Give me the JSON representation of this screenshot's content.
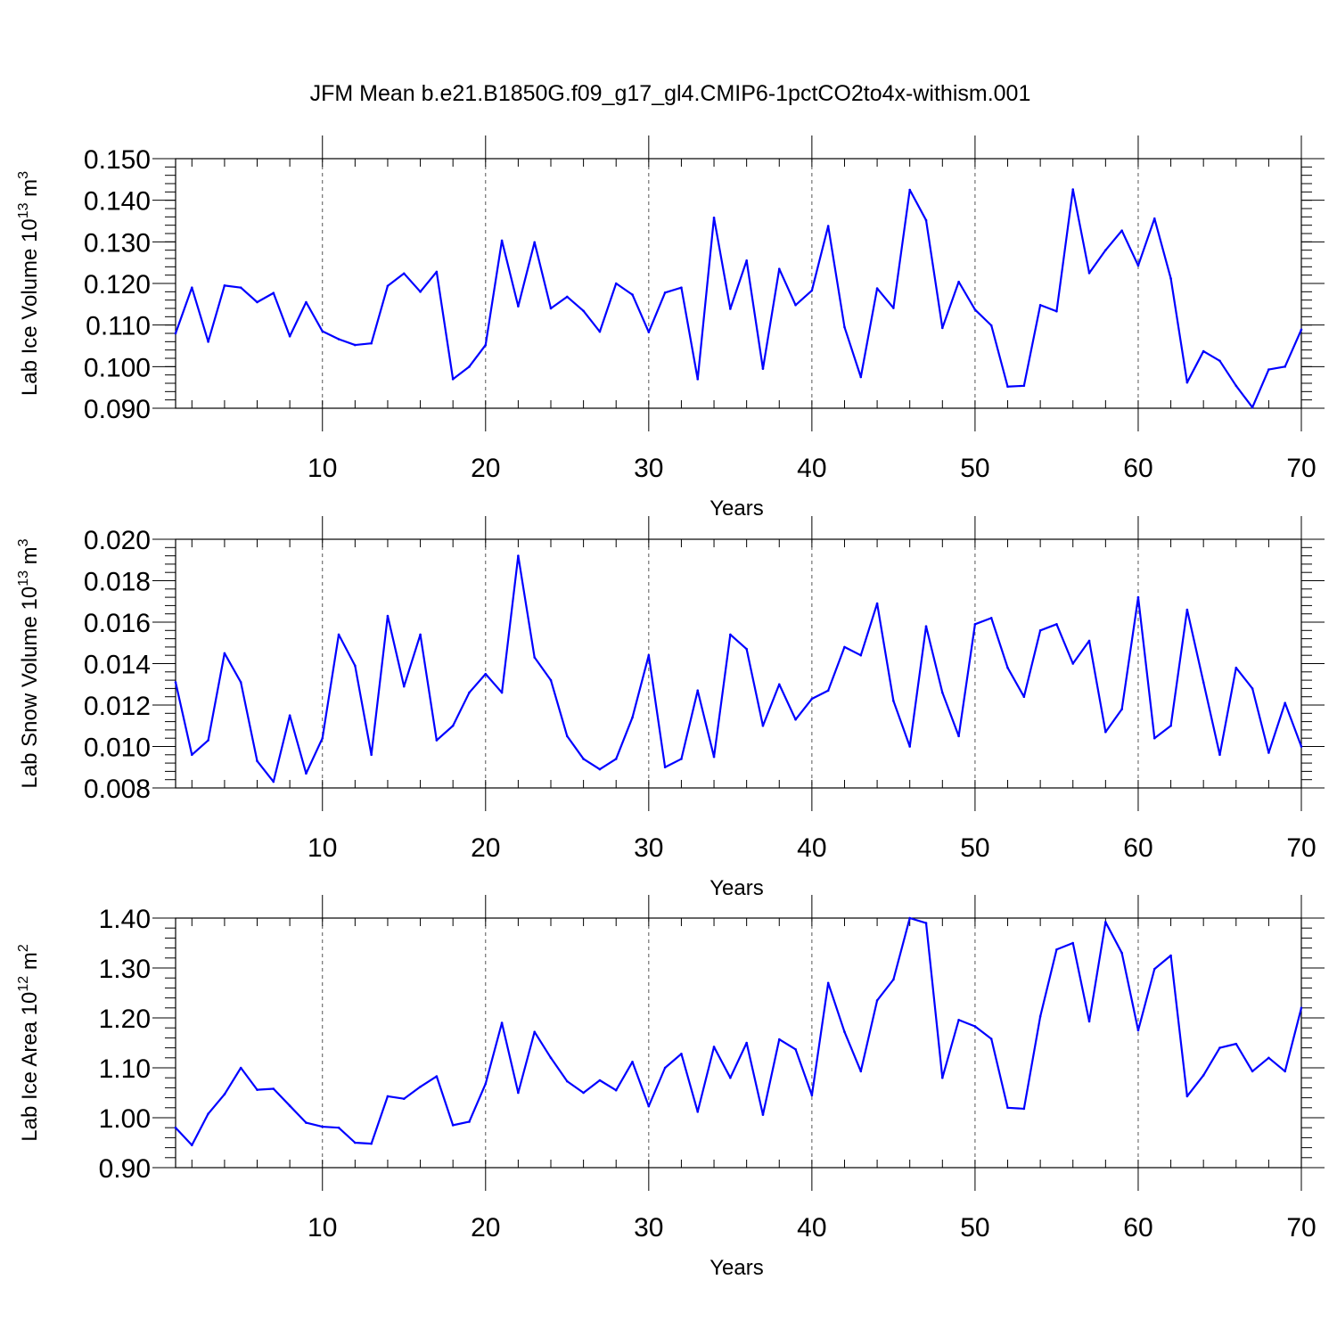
{
  "figure": {
    "title": "JFM Mean b.e21.B1850G.f09_g17_gl4.CMIP6-1pctCO2to4x-withism.001",
    "line_color": "#0000ff"
  },
  "chart_data": [
    {
      "type": "line",
      "title": "JFM Mean b.e21.B1850G.f09_g17_gl4.CMIP6-1pctCO2to4x-withism.001",
      "ylabel": "Lab Ice Volume 10",
      "ylabel_sup": "13",
      "ylabel_unit": "m",
      "ylabel_unit_sup": "3",
      "xlabel": "Years",
      "xlim": [
        1,
        70
      ],
      "ylim": [
        0.09,
        0.15
      ],
      "yticks": [
        0.09,
        0.1,
        0.11,
        0.12,
        0.13,
        0.14,
        0.15
      ],
      "ytick_labels": [
        "0.090",
        "0.100",
        "0.110",
        "0.120",
        "0.130",
        "0.140",
        "0.150"
      ],
      "yminor_step": 0.002,
      "xticks": [
        10,
        20,
        30,
        40,
        50,
        60,
        70
      ],
      "xtick_labels": [
        "10",
        "20",
        "30",
        "40",
        "50",
        "60",
        "70"
      ],
      "grid": "vertical dashed at major x ticks",
      "series": [
        {
          "name": "Lab Ice Volume",
          "values": [
            0.108,
            0.119,
            0.106,
            0.1195,
            0.119,
            0.1155,
            0.1177,
            0.1073,
            0.1155,
            0.1085,
            0.1066,
            0.1052,
            0.1056,
            0.1194,
            0.1224,
            0.118,
            0.1228,
            0.097,
            0.1,
            0.1052,
            0.1303,
            0.1145,
            0.1299,
            0.114,
            0.1168,
            0.1134,
            0.1084,
            0.12,
            0.1173,
            0.1083,
            0.1178,
            0.119,
            0.097,
            0.1358,
            0.1139,
            0.1255,
            0.0995,
            0.1235,
            0.1148,
            0.1183,
            0.1338,
            0.1095,
            0.0975,
            0.1188,
            0.1141,
            0.1425,
            0.1352,
            0.1093,
            0.1204,
            0.1137,
            0.1099,
            0.0952,
            0.0954,
            0.1148,
            0.1133,
            0.1426,
            0.1225,
            0.128,
            0.1327,
            0.1243,
            0.1356,
            0.1212,
            0.0962,
            0.1037,
            0.1014,
            0.0954,
            0.0902,
            0.0993,
            0.1,
            0.1089
          ]
        }
      ]
    },
    {
      "type": "line",
      "ylabel": "Lab Snow Volume 10",
      "ylabel_sup": "13",
      "ylabel_unit": "m",
      "ylabel_unit_sup": "3",
      "xlabel": "Years",
      "xlim": [
        1,
        70
      ],
      "ylim": [
        0.008,
        0.02
      ],
      "yticks": [
        0.008,
        0.01,
        0.012,
        0.014,
        0.016,
        0.018,
        0.02
      ],
      "ytick_labels": [
        "0.008",
        "0.010",
        "0.012",
        "0.014",
        "0.016",
        "0.018",
        "0.020"
      ],
      "yminor_step": 0.0004,
      "xticks": [
        10,
        20,
        30,
        40,
        50,
        60,
        70
      ],
      "xtick_labels": [
        "10",
        "20",
        "30",
        "40",
        "50",
        "60",
        "70"
      ],
      "grid": "vertical dashed at major x ticks",
      "series": [
        {
          "name": "Lab Snow Volume",
          "values": [
            0.0131,
            0.0096,
            0.0103,
            0.0145,
            0.0131,
            0.0093,
            0.0083,
            0.0115,
            0.0087,
            0.0104,
            0.0154,
            0.0139,
            0.0096,
            0.0163,
            0.0129,
            0.0154,
            0.0103,
            0.011,
            0.0126,
            0.0135,
            0.0126,
            0.0192,
            0.0143,
            0.0132,
            0.0105,
            0.0094,
            0.0089,
            0.0094,
            0.0114,
            0.0144,
            0.009,
            0.0094,
            0.0127,
            0.0095,
            0.0154,
            0.0147,
            0.011,
            0.013,
            0.0113,
            0.0123,
            0.0127,
            0.0148,
            0.0144,
            0.0169,
            0.0122,
            0.01,
            0.0158,
            0.0126,
            0.0105,
            0.0159,
            0.0162,
            0.0138,
            0.0124,
            0.0156,
            0.0159,
            0.014,
            0.0151,
            0.0107,
            0.0118,
            0.0172,
            0.0104,
            0.011,
            0.0166,
            0.0131,
            0.0096,
            0.0138,
            0.0128,
            0.0097,
            0.0121,
            0.01
          ]
        }
      ]
    },
    {
      "type": "line",
      "ylabel": "Lab Ice Area 10",
      "ylabel_sup": "12",
      "ylabel_unit": "m",
      "ylabel_unit_sup": "2",
      "xlabel": "Years",
      "xlim": [
        1,
        70
      ],
      "ylim": [
        0.9,
        1.4
      ],
      "yticks": [
        0.9,
        1.0,
        1.1,
        1.2,
        1.3,
        1.4
      ],
      "ytick_labels": [
        "0.90",
        "1.00",
        "1.10",
        "1.20",
        "1.30",
        "1.40"
      ],
      "yminor_step": 0.02,
      "xticks": [
        10,
        20,
        30,
        40,
        50,
        60,
        70
      ],
      "xtick_labels": [
        "10",
        "20",
        "30",
        "40",
        "50",
        "60",
        "70"
      ],
      "grid": "vertical dashed at major x ticks",
      "series": [
        {
          "name": "Lab Ice Area",
          "values": [
            0.98,
            0.945,
            1.008,
            1.047,
            1.1,
            1.056,
            1.058,
            1.024,
            0.99,
            0.982,
            0.98,
            0.95,
            0.948,
            1.043,
            1.038,
            1.062,
            1.083,
            0.985,
            0.992,
            1.068,
            1.19,
            1.05,
            1.172,
            1.12,
            1.073,
            1.05,
            1.075,
            1.055,
            1.112,
            1.023,
            1.1,
            1.128,
            1.012,
            1.142,
            1.08,
            1.15,
            1.006,
            1.157,
            1.137,
            1.045,
            1.27,
            1.172,
            1.093,
            1.235,
            1.277,
            1.4,
            1.39,
            1.08,
            1.196,
            1.183,
            1.158,
            1.02,
            1.018,
            1.203,
            1.337,
            1.35,
            1.193,
            1.392,
            1.33,
            1.175,
            1.298,
            1.325,
            1.043,
            1.085,
            1.14,
            1.148,
            1.093,
            1.12,
            1.093,
            1.22
          ]
        }
      ]
    }
  ]
}
